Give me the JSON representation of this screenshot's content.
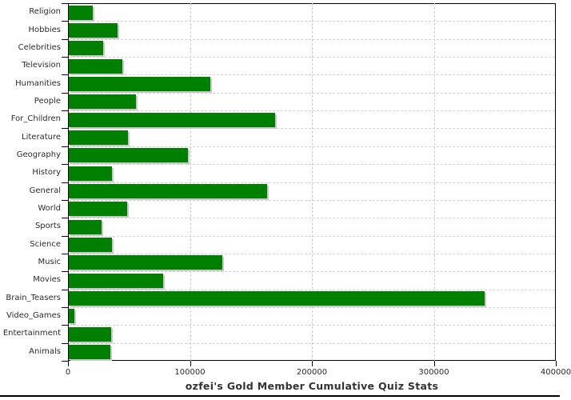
{
  "title": "ozfei's Gold Member Cumulative Quiz Stats",
  "chart_data": {
    "type": "bar",
    "orientation": "horizontal",
    "title": "ozfei's Gold Member Cumulative Quiz Stats",
    "xlabel": "",
    "ylabel": "",
    "xlim": [
      0,
      400000
    ],
    "grid": "dashed",
    "legend": "none",
    "bar_color": "#008000",
    "bar_shadow_color": "#c9c9c9",
    "grid_color": "#cdcdcd",
    "axis_color": "#000000",
    "text_color": "#2b2b2b",
    "categories": [
      "Religion",
      "Hobbies",
      "Celebrities",
      "Television",
      "Humanities",
      "People",
      "For_Children",
      "Literature",
      "Geography",
      "History",
      "General",
      "World",
      "Sports",
      "Science",
      "Music",
      "Movies",
      "Brain_Teasers",
      "Video_Games",
      "Entertainment",
      "Animals"
    ],
    "values": [
      19700,
      39800,
      28000,
      44200,
      115900,
      55300,
      169400,
      48300,
      98000,
      35600,
      162700,
      48100,
      26700,
      35400,
      126000,
      77200,
      341200,
      4600,
      35000,
      34100
    ],
    "x_ticks": [
      0,
      100000,
      200000,
      300000,
      400000
    ],
    "x_tick_labels": [
      "0",
      "100000",
      "200000",
      "300000",
      "400000"
    ]
  }
}
